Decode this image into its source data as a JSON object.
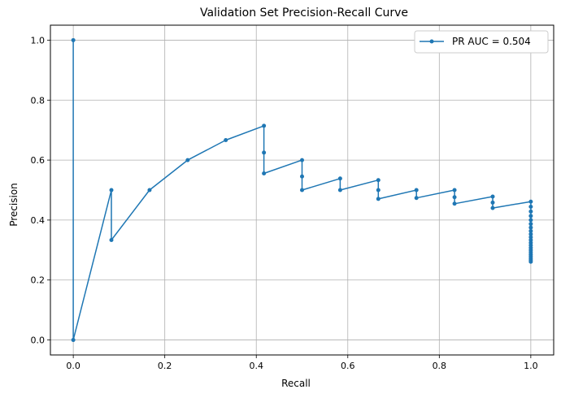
{
  "chart_data": {
    "type": "line",
    "title": "Validation Set Precision-Recall Curve",
    "xlabel": "Recall",
    "ylabel": "Precision",
    "xlim": [
      -0.05,
      1.05
    ],
    "ylim": [
      -0.05,
      1.05
    ],
    "xticks": [
      "0.0",
      "0.2",
      "0.4",
      "0.6",
      "0.8",
      "1.0"
    ],
    "yticks": [
      "0.0",
      "0.2",
      "0.4",
      "0.6",
      "0.8",
      "1.0"
    ],
    "grid": true,
    "legend_position": "top-right",
    "series": [
      {
        "name": "PR AUC = 0.504",
        "color": "#1f77b4",
        "marker": "circle",
        "x": [
          0.0,
          0.0,
          0.0833,
          0.0833,
          0.1667,
          0.25,
          0.3333,
          0.4167,
          0.4167,
          0.4167,
          0.5,
          0.5,
          0.5,
          0.5833,
          0.5833,
          0.6667,
          0.6667,
          0.6667,
          0.75,
          0.75,
          0.8333,
          0.8333,
          0.8333,
          0.9167,
          0.9167,
          0.9167,
          1.0,
          1.0,
          1.0,
          1.0,
          1.0,
          1.0,
          1.0,
          1.0,
          1.0,
          1.0,
          1.0,
          1.0,
          1.0,
          1.0,
          1.0,
          1.0,
          1.0,
          1.0,
          1.0,
          1.0,
          1.0
        ],
        "y": [
          1.0,
          0.0,
          0.5,
          0.3333,
          0.5,
          0.6,
          0.6667,
          0.7143,
          0.625,
          0.5556,
          0.6,
          0.5455,
          0.5,
          0.5385,
          0.5,
          0.5333,
          0.5,
          0.4706,
          0.5,
          0.4737,
          0.5,
          0.4762,
          0.4545,
          0.4783,
          0.4583,
          0.44,
          0.4615,
          0.4444,
          0.4286,
          0.4138,
          0.4,
          0.3871,
          0.375,
          0.3636,
          0.3529,
          0.3429,
          0.3333,
          0.3243,
          0.3158,
          0.3077,
          0.3,
          0.2927,
          0.2857,
          0.2791,
          0.2727,
          0.2667,
          0.2609
        ]
      }
    ]
  }
}
